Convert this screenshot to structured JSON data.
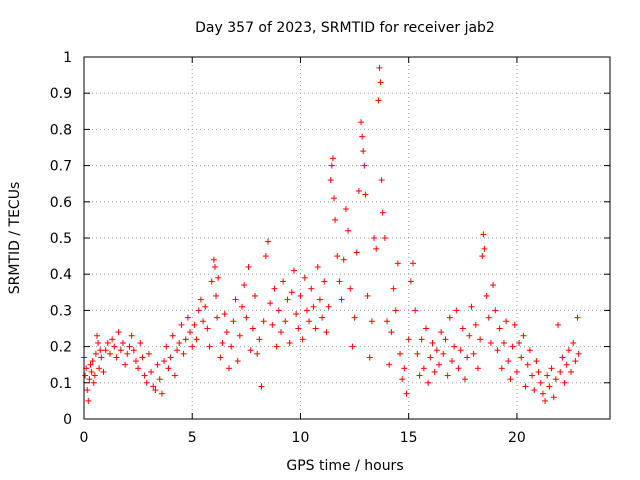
{
  "chart_data": {
    "type": "scatter",
    "title": "Day 357 of 2023, SRMTID for receiver jab2",
    "xlabel": "GPS time / hours",
    "ylabel": "SRMTID / TECUs",
    "xlim": [
      0,
      24.3
    ],
    "ylim": [
      0,
      1
    ],
    "xticks": [
      0,
      5,
      10,
      15,
      20
    ],
    "xtick_labels": [
      "0",
      "5",
      "10",
      "15",
      "20"
    ],
    "yticks": [
      0,
      0.1,
      0.2,
      0.3,
      0.4,
      0.5,
      0.6,
      0.7,
      0.8,
      0.9,
      1
    ],
    "ytick_labels": [
      "0",
      "0.1",
      "0.2",
      "0.3",
      "0.4",
      "0.5",
      "0.6",
      "0.7",
      "0.8",
      "0.9",
      "1"
    ],
    "grid": true,
    "marker": "+",
    "color": "#ff0000",
    "series": [
      {
        "name": "SRMTID",
        "points": [
          [
            0.0,
            0.17
          ],
          [
            0.05,
            0.12
          ],
          [
            0.1,
            0.14
          ],
          [
            0.15,
            0.08
          ],
          [
            0.2,
            0.05
          ],
          [
            0.25,
            0.11
          ],
          [
            0.3,
            0.15
          ],
          [
            0.35,
            0.13
          ],
          [
            0.4,
            0.16
          ],
          [
            0.45,
            0.1
          ],
          [
            0.5,
            0.12
          ],
          [
            0.55,
            0.18
          ],
          [
            0.6,
            0.23
          ],
          [
            0.65,
            0.21
          ],
          [
            0.7,
            0.14
          ],
          [
            0.75,
            0.19
          ],
          [
            0.8,
            0.17
          ],
          [
            0.9,
            0.13
          ],
          [
            1.0,
            0.19
          ],
          [
            1.1,
            0.21
          ],
          [
            1.2,
            0.18
          ],
          [
            1.3,
            0.22
          ],
          [
            1.4,
            0.2
          ],
          [
            1.5,
            0.17
          ],
          [
            1.6,
            0.24
          ],
          [
            1.7,
            0.19
          ],
          [
            1.8,
            0.21
          ],
          [
            1.9,
            0.15
          ],
          [
            2.0,
            0.18
          ],
          [
            2.1,
            0.2
          ],
          [
            2.2,
            0.23
          ],
          [
            2.3,
            0.19
          ],
          [
            2.4,
            0.16
          ],
          [
            2.5,
            0.14
          ],
          [
            2.6,
            0.21
          ],
          [
            2.7,
            0.17
          ],
          [
            2.8,
            0.12
          ],
          [
            2.9,
            0.1
          ],
          [
            3.0,
            0.18
          ],
          [
            3.1,
            0.13
          ],
          [
            3.2,
            0.09
          ],
          [
            3.3,
            0.08
          ],
          [
            3.4,
            0.15
          ],
          [
            3.5,
            0.11
          ],
          [
            3.6,
            0.07
          ],
          [
            3.7,
            0.16
          ],
          [
            3.8,
            0.2
          ],
          [
            3.9,
            0.14
          ],
          [
            4.0,
            0.17
          ],
          [
            4.1,
            0.23
          ],
          [
            4.2,
            0.12
          ],
          [
            4.3,
            0.19
          ],
          [
            4.4,
            0.21
          ],
          [
            4.5,
            0.26
          ],
          [
            4.6,
            0.18
          ],
          [
            4.7,
            0.22
          ],
          [
            4.8,
            0.28
          ],
          [
            4.9,
            0.24
          ],
          [
            5.0,
            0.2
          ],
          [
            5.1,
            0.26
          ],
          [
            5.2,
            0.22
          ],
          [
            5.3,
            0.3
          ],
          [
            5.4,
            0.33
          ],
          [
            5.5,
            0.27
          ],
          [
            5.6,
            0.31
          ],
          [
            5.7,
            0.25
          ],
          [
            5.8,
            0.2
          ],
          [
            5.9,
            0.38
          ],
          [
            6.0,
            0.44
          ],
          [
            6.05,
            0.42
          ],
          [
            6.1,
            0.34
          ],
          [
            6.15,
            0.28
          ],
          [
            6.2,
            0.39
          ],
          [
            6.3,
            0.17
          ],
          [
            6.4,
            0.21
          ],
          [
            6.5,
            0.29
          ],
          [
            6.6,
            0.24
          ],
          [
            6.7,
            0.14
          ],
          [
            6.8,
            0.2
          ],
          [
            6.9,
            0.27
          ],
          [
            7.0,
            0.33
          ],
          [
            7.1,
            0.16
          ],
          [
            7.2,
            0.23
          ],
          [
            7.3,
            0.31
          ],
          [
            7.4,
            0.37
          ],
          [
            7.5,
            0.28
          ],
          [
            7.6,
            0.42
          ],
          [
            7.7,
            0.19
          ],
          [
            7.8,
            0.25
          ],
          [
            7.9,
            0.34
          ],
          [
            8.0,
            0.18
          ],
          [
            8.1,
            0.22
          ],
          [
            8.2,
            0.09
          ],
          [
            8.3,
            0.27
          ],
          [
            8.4,
            0.45
          ],
          [
            8.5,
            0.49
          ],
          [
            8.6,
            0.32
          ],
          [
            8.7,
            0.26
          ],
          [
            8.8,
            0.36
          ],
          [
            8.9,
            0.2
          ],
          [
            9.0,
            0.3
          ],
          [
            9.1,
            0.24
          ],
          [
            9.2,
            0.38
          ],
          [
            9.3,
            0.27
          ],
          [
            9.4,
            0.33
          ],
          [
            9.5,
            0.21
          ],
          [
            9.6,
            0.35
          ],
          [
            9.7,
            0.41
          ],
          [
            9.8,
            0.29
          ],
          [
            9.9,
            0.25
          ],
          [
            10.0,
            0.34
          ],
          [
            10.1,
            0.22
          ],
          [
            10.2,
            0.39
          ],
          [
            10.3,
            0.3
          ],
          [
            10.4,
            0.27
          ],
          [
            10.5,
            0.36
          ],
          [
            10.6,
            0.31
          ],
          [
            10.7,
            0.25
          ],
          [
            10.8,
            0.42
          ],
          [
            10.9,
            0.33
          ],
          [
            11.0,
            0.28
          ],
          [
            11.1,
            0.38
          ],
          [
            11.2,
            0.24
          ],
          [
            11.3,
            0.31
          ],
          [
            11.4,
            0.66
          ],
          [
            11.45,
            0.7
          ],
          [
            11.5,
            0.72
          ],
          [
            11.55,
            0.61
          ],
          [
            11.6,
            0.55
          ],
          [
            11.7,
            0.45
          ],
          [
            11.8,
            0.38
          ],
          [
            11.9,
            0.33
          ],
          [
            12.0,
            0.44
          ],
          [
            12.1,
            0.58
          ],
          [
            12.2,
            0.52
          ],
          [
            12.3,
            0.36
          ],
          [
            12.4,
            0.2
          ],
          [
            12.5,
            0.28
          ],
          [
            12.6,
            0.46
          ],
          [
            12.7,
            0.63
          ],
          [
            12.8,
            0.82
          ],
          [
            12.85,
            0.78
          ],
          [
            12.9,
            0.74
          ],
          [
            12.95,
            0.7
          ],
          [
            13.0,
            0.62
          ],
          [
            13.1,
            0.34
          ],
          [
            13.2,
            0.17
          ],
          [
            13.3,
            0.27
          ],
          [
            13.4,
            0.5
          ],
          [
            13.5,
            0.47
          ],
          [
            13.6,
            0.88
          ],
          [
            13.65,
            0.97
          ],
          [
            13.7,
            0.93
          ],
          [
            13.75,
            0.66
          ],
          [
            13.8,
            0.57
          ],
          [
            13.9,
            0.5
          ],
          [
            14.0,
            0.27
          ],
          [
            14.1,
            0.15
          ],
          [
            14.2,
            0.24
          ],
          [
            14.3,
            0.36
          ],
          [
            14.4,
            0.3
          ],
          [
            14.5,
            0.43
          ],
          [
            14.6,
            0.18
          ],
          [
            14.7,
            0.11
          ],
          [
            14.8,
            0.14
          ],
          [
            14.9,
            0.07
          ],
          [
            15.0,
            0.22
          ],
          [
            15.1,
            0.38
          ],
          [
            15.2,
            0.43
          ],
          [
            15.3,
            0.3
          ],
          [
            15.4,
            0.18
          ],
          [
            15.5,
            0.12
          ],
          [
            15.6,
            0.22
          ],
          [
            15.7,
            0.14
          ],
          [
            15.8,
            0.25
          ],
          [
            15.9,
            0.1
          ],
          [
            16.0,
            0.17
          ],
          [
            16.1,
            0.21
          ],
          [
            16.2,
            0.13
          ],
          [
            16.3,
            0.19
          ],
          [
            16.4,
            0.15
          ],
          [
            16.5,
            0.24
          ],
          [
            16.6,
            0.18
          ],
          [
            16.7,
            0.22
          ],
          [
            16.8,
            0.12
          ],
          [
            16.9,
            0.28
          ],
          [
            17.0,
            0.16
          ],
          [
            17.1,
            0.2
          ],
          [
            17.2,
            0.3
          ],
          [
            17.3,
            0.14
          ],
          [
            17.4,
            0.19
          ],
          [
            17.5,
            0.25
          ],
          [
            17.6,
            0.11
          ],
          [
            17.7,
            0.17
          ],
          [
            17.8,
            0.23
          ],
          [
            17.9,
            0.31
          ],
          [
            18.0,
            0.18
          ],
          [
            18.1,
            0.26
          ],
          [
            18.2,
            0.14
          ],
          [
            18.3,
            0.22
          ],
          [
            18.4,
            0.45
          ],
          [
            18.45,
            0.51
          ],
          [
            18.5,
            0.47
          ],
          [
            18.6,
            0.34
          ],
          [
            18.7,
            0.28
          ],
          [
            18.8,
            0.21
          ],
          [
            18.9,
            0.37
          ],
          [
            19.0,
            0.3
          ],
          [
            19.1,
            0.19
          ],
          [
            19.2,
            0.25
          ],
          [
            19.3,
            0.14
          ],
          [
            19.4,
            0.21
          ],
          [
            19.5,
            0.27
          ],
          [
            19.6,
            0.16
          ],
          [
            19.7,
            0.11
          ],
          [
            19.8,
            0.2
          ],
          [
            19.9,
            0.26
          ],
          [
            20.0,
            0.13
          ],
          [
            20.1,
            0.21
          ],
          [
            20.2,
            0.17
          ],
          [
            20.3,
            0.23
          ],
          [
            20.4,
            0.09
          ],
          [
            20.5,
            0.15
          ],
          [
            20.6,
            0.19
          ],
          [
            20.7,
            0.12
          ],
          [
            20.8,
            0.08
          ],
          [
            20.9,
            0.16
          ],
          [
            21.0,
            0.13
          ],
          [
            21.1,
            0.1
          ],
          [
            21.2,
            0.07
          ],
          [
            21.3,
            0.05
          ],
          [
            21.4,
            0.12
          ],
          [
            21.5,
            0.09
          ],
          [
            21.6,
            0.14
          ],
          [
            21.7,
            0.06
          ],
          [
            21.8,
            0.11
          ],
          [
            21.9,
            0.26
          ],
          [
            22.0,
            0.13
          ],
          [
            22.1,
            0.17
          ],
          [
            22.2,
            0.1
          ],
          [
            22.3,
            0.15
          ],
          [
            22.4,
            0.19
          ],
          [
            22.5,
            0.13
          ],
          [
            22.6,
            0.21
          ],
          [
            22.7,
            0.16
          ],
          [
            22.8,
            0.28
          ],
          [
            22.85,
            0.18
          ]
        ]
      }
    ]
  }
}
